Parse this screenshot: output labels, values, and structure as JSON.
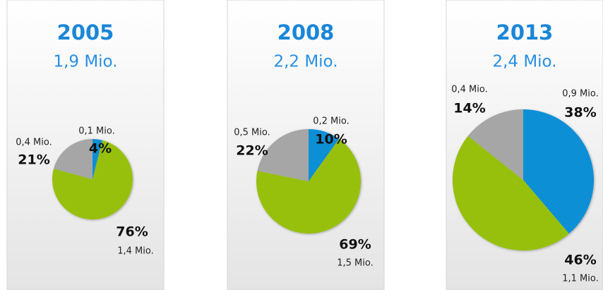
{
  "chart_data": [
    {
      "type": "pie",
      "title": "2005",
      "subtitle": "1,9 Mio.",
      "values": [
        4,
        76,
        21
      ],
      "value_labels": [
        "4%",
        "76%",
        "21%"
      ],
      "amounts": [
        "0,1 Mio.",
        "1,4 Mio.",
        "0,4 Mio."
      ],
      "colors": [
        "#0a8fd6",
        "#97c00e",
        "#a6a6a6"
      ]
    },
    {
      "type": "pie",
      "title": "2008",
      "subtitle": "2,2 Mio.",
      "values": [
        10,
        69,
        22
      ],
      "value_labels": [
        "10%",
        "69%",
        "22%"
      ],
      "amounts": [
        "0,2 Mio.",
        "1,5 Mio.",
        "0,5 Mio."
      ],
      "colors": [
        "#0a8fd6",
        "#97c00e",
        "#a6a6a6"
      ]
    },
    {
      "type": "pie",
      "title": "2013",
      "subtitle": "2,4 Mio.",
      "values": [
        38,
        46,
        14
      ],
      "value_labels": [
        "38%",
        "46%",
        "14%"
      ],
      "amounts": [
        "0,9 Mio.",
        "1,1 Mio.",
        "0,4 Mio."
      ],
      "colors": [
        "#0a8fd6",
        "#97c00e",
        "#a6a6a6"
      ]
    }
  ]
}
